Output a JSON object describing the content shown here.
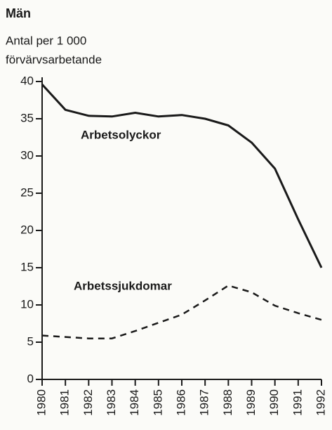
{
  "chart_data": {
    "type": "line",
    "title": "Män",
    "ylabel": [
      "Antal per 1 000",
      "förvärvsarbetande"
    ],
    "x": [
      1980,
      1981,
      1982,
      1983,
      1984,
      1985,
      1986,
      1987,
      1988,
      1989,
      1990,
      1991,
      1992
    ],
    "xlim": [
      1980,
      1992
    ],
    "xticks": [
      1980,
      1981,
      1982,
      1983,
      1984,
      1985,
      1986,
      1987,
      1988,
      1989,
      1990,
      1991,
      1992
    ],
    "ylim": [
      0,
      40
    ],
    "yticks": [
      0,
      5,
      10,
      15,
      20,
      25,
      30,
      35,
      40
    ],
    "series": [
      {
        "name": "Arbetsolyckor",
        "color": "#1a1a1a",
        "dashed": false,
        "values": [
          39.6,
          36.2,
          35.4,
          35.3,
          35.8,
          35.3,
          35.5,
          35.0,
          34.1,
          31.8,
          28.3,
          21.5,
          15.0
        ]
      },
      {
        "name": "Arbetssjukdomar",
        "color": "#1a1a1a",
        "dashed": true,
        "values": [
          5.9,
          5.7,
          5.5,
          5.5,
          6.5,
          7.6,
          8.7,
          10.6,
          12.6,
          11.7,
          9.9,
          8.9,
          8.0
        ]
      }
    ]
  }
}
